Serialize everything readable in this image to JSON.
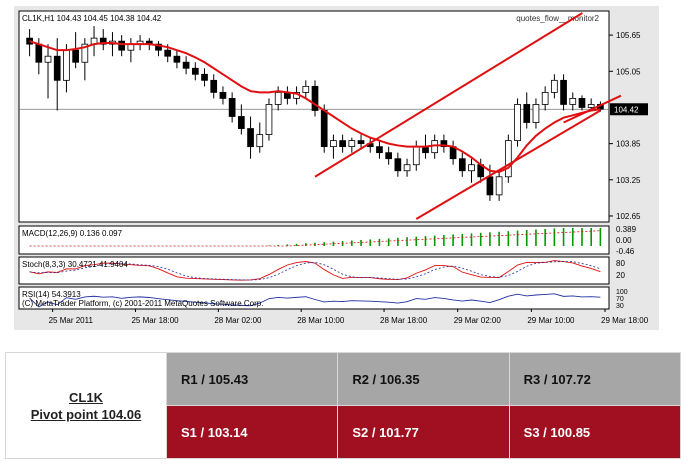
{
  "chart_data": {
    "type": "candlestick",
    "header": "CL1K,H1  104.43 104.45 104.38 104.42",
    "watermark": "quotes_flow__monitor2",
    "price_axis": [
      105.65,
      105.05,
      103.85,
      103.25,
      102.65
    ],
    "last_price": "104.42",
    "ylim": [
      102.55,
      106.05
    ],
    "x_labels": [
      "25 Mar 2011",
      "25 Mar 18:00",
      "28 Mar 02:00",
      "28 Mar 10:00",
      "28 Mar 18:00",
      "29 Mar 02:00",
      "29 Mar 10:00",
      "29 Mar 18:00"
    ],
    "candles": [
      [
        105.6,
        105.75,
        105.3,
        105.5
      ],
      [
        105.5,
        105.6,
        105.0,
        105.2
      ],
      [
        105.2,
        105.5,
        104.6,
        105.3
      ],
      [
        105.3,
        105.6,
        104.4,
        104.9
      ],
      [
        104.9,
        105.5,
        104.7,
        105.4
      ],
      [
        105.4,
        105.7,
        105.1,
        105.2
      ],
      [
        105.2,
        105.6,
        104.9,
        105.5
      ],
      [
        105.5,
        105.8,
        105.3,
        105.6
      ],
      [
        105.6,
        105.75,
        105.4,
        105.5
      ],
      [
        105.5,
        105.7,
        105.3,
        105.55
      ],
      [
        105.55,
        105.65,
        105.3,
        105.4
      ],
      [
        105.4,
        105.6,
        105.2,
        105.5
      ],
      [
        105.5,
        105.65,
        105.4,
        105.55
      ],
      [
        105.55,
        105.6,
        105.4,
        105.5
      ],
      [
        105.5,
        105.55,
        105.3,
        105.4
      ],
      [
        105.4,
        105.5,
        105.2,
        105.3
      ],
      [
        105.3,
        105.4,
        105.1,
        105.2
      ],
      [
        105.2,
        105.3,
        105.0,
        105.1
      ],
      [
        105.1,
        105.2,
        104.9,
        105.0
      ],
      [
        105.0,
        105.1,
        104.8,
        104.9
      ],
      [
        104.9,
        105.0,
        104.6,
        104.7
      ],
      [
        104.7,
        104.8,
        104.5,
        104.6
      ],
      [
        104.6,
        104.7,
        104.2,
        104.3
      ],
      [
        104.3,
        104.5,
        104.0,
        104.1
      ],
      [
        104.1,
        104.3,
        103.6,
        103.8
      ],
      [
        103.8,
        104.2,
        103.7,
        104.0
      ],
      [
        104.0,
        104.6,
        103.9,
        104.5
      ],
      [
        104.5,
        104.8,
        104.4,
        104.7
      ],
      [
        104.7,
        104.8,
        104.5,
        104.6
      ],
      [
        104.6,
        104.8,
        104.5,
        104.7
      ],
      [
        104.7,
        104.9,
        104.6,
        104.8
      ],
      [
        104.8,
        104.9,
        104.3,
        104.4
      ],
      [
        104.4,
        104.5,
        103.7,
        103.8
      ],
      [
        103.8,
        104.0,
        103.6,
        103.9
      ],
      [
        103.9,
        104.0,
        103.7,
        103.8
      ],
      [
        103.8,
        103.95,
        103.7,
        103.9
      ],
      [
        103.9,
        104.0,
        103.75,
        103.85
      ],
      [
        103.85,
        103.95,
        103.7,
        103.8
      ],
      [
        103.8,
        103.9,
        103.6,
        103.7
      ],
      [
        103.7,
        103.8,
        103.5,
        103.6
      ],
      [
        103.6,
        103.7,
        103.3,
        103.4
      ],
      [
        103.4,
        103.6,
        103.3,
        103.5
      ],
      [
        103.5,
        103.9,
        103.4,
        103.8
      ],
      [
        103.8,
        104.0,
        103.6,
        103.7
      ],
      [
        103.7,
        104.0,
        103.6,
        103.9
      ],
      [
        103.9,
        104.0,
        103.7,
        103.8
      ],
      [
        103.8,
        103.9,
        103.5,
        103.6
      ],
      [
        103.6,
        103.7,
        103.3,
        103.4
      ],
      [
        103.4,
        103.6,
        103.2,
        103.5
      ],
      [
        103.5,
        103.6,
        103.2,
        103.3
      ],
      [
        103.3,
        103.5,
        102.9,
        103.0
      ],
      [
        103.0,
        103.4,
        102.9,
        103.3
      ],
      [
        103.3,
        104.0,
        103.2,
        103.9
      ],
      [
        103.9,
        104.6,
        103.8,
        104.5
      ],
      [
        104.5,
        104.7,
        104.1,
        104.2
      ],
      [
        104.2,
        104.6,
        104.1,
        104.5
      ],
      [
        104.5,
        104.8,
        104.4,
        104.7
      ],
      [
        104.7,
        105.0,
        104.6,
        104.9
      ],
      [
        104.9,
        105.0,
        104.4,
        104.5
      ],
      [
        104.5,
        104.7,
        104.4,
        104.6
      ],
      [
        104.6,
        104.65,
        104.4,
        104.45
      ],
      [
        104.45,
        104.6,
        104.4,
        104.5
      ],
      [
        104.5,
        104.55,
        104.38,
        104.42
      ]
    ],
    "ma": [
      105.55,
      105.5,
      105.45,
      105.4,
      105.4,
      105.42,
      105.45,
      105.5,
      105.52,
      105.52,
      105.5,
      105.5,
      105.5,
      105.5,
      105.48,
      105.45,
      105.4,
      105.35,
      105.28,
      105.2,
      105.1,
      105.0,
      104.9,
      104.8,
      104.72,
      104.7,
      104.7,
      104.72,
      104.7,
      104.68,
      104.6,
      104.5,
      104.4,
      104.3,
      104.2,
      104.1,
      104.02,
      103.95,
      103.9,
      103.85,
      103.82,
      103.8,
      103.8,
      103.8,
      103.82,
      103.82,
      103.8,
      103.72,
      103.62,
      103.5,
      103.4,
      103.38,
      103.45,
      103.62,
      103.82,
      103.98,
      104.1,
      104.2,
      104.28,
      104.32,
      104.36,
      104.4,
      104.42
    ],
    "channels": [
      {
        "from": [
          31,
          103.3
        ],
        "to": [
          62,
          106.2
        ]
      },
      {
        "from": [
          42,
          102.6
        ],
        "to": [
          62,
          104.4
        ]
      },
      {
        "from": [
          58,
          104.2
        ],
        "to": [
          72,
          105.2
        ]
      }
    ],
    "macd": {
      "label": "MACD(12,26,9) 0.136 0.097",
      "ticks": [
        "0.389",
        "0.00",
        "-0.46"
      ]
    },
    "stoch": {
      "label": "Stoch(8,3,3) 30.4721 41.9404",
      "ticks": [
        "80",
        "20"
      ]
    },
    "rsi": {
      "label": "RSI(14) 54.3913",
      "ticks": [
        "100",
        "70",
        "30"
      ]
    },
    "copyright": "(C) MetaTrader Platform, (c) 2001-2011 MetaQuotes Software Corp."
  },
  "pivot_table": {
    "symbol": "CL1K",
    "pivot": "Pivot point 104.06",
    "resistance": [
      "R1 / 105.43",
      "R2  / 106.35",
      "R3 / 107.72"
    ],
    "support": [
      "S1 / 103.14",
      "S2 /  101.77",
      "S3 /  100.85"
    ]
  }
}
